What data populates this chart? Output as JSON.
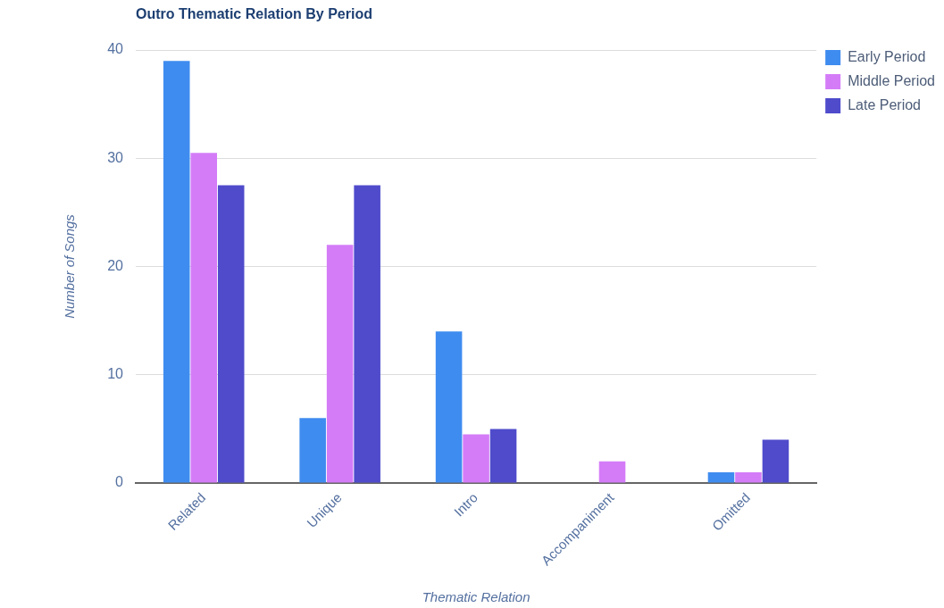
{
  "chart_data": {
    "type": "bar",
    "title": "Outro Thematic Relation By Period",
    "xlabel": "Thematic Relation",
    "ylabel": "Number of Songs",
    "categories": [
      "Related",
      "Unique",
      "Intro",
      "Accompaniment",
      "Omitted"
    ],
    "series": [
      {
        "name": "Early Period",
        "color": "#3f8cf0",
        "values": [
          39,
          6,
          14,
          0,
          1
        ]
      },
      {
        "name": "Middle Period",
        "color": "#d47cf8",
        "values": [
          30.5,
          22,
          4.5,
          2,
          1
        ]
      },
      {
        "name": "Late Period",
        "color": "#4f4bcb",
        "values": [
          27.5,
          27.5,
          5,
          0,
          4
        ]
      }
    ],
    "ylim": [
      0,
      40
    ],
    "yticks": [
      0,
      10,
      20,
      30,
      40
    ],
    "grid": "y",
    "legend": "top right"
  }
}
